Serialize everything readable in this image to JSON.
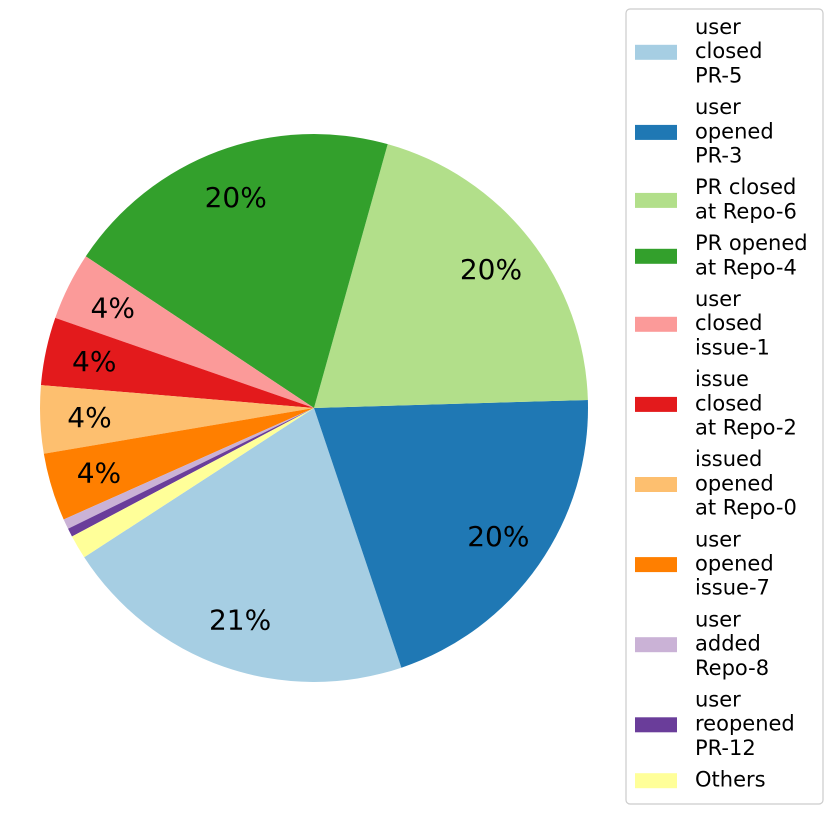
{
  "chart_data": {
    "type": "pie",
    "labels": [
      "user\nclosed\nPR-5",
      "user\nopened\nPR-3",
      "PR closed\nat Repo-6",
      "PR opened\nat Repo-4",
      "user\nclosed\nissue-1",
      "issue\nclosed\nat Repo-2",
      "issued\nopened\nat Repo-0",
      "user\nopened\nissue-7",
      "user\nadded\nRepo-8",
      "user\nreopened\nPR-12",
      "Others"
    ],
    "values": [
      21.0,
      20.3,
      20.2,
      20.0,
      4.0,
      4.0,
      4.0,
      4.0,
      0.6,
      0.5,
      1.4
    ],
    "value_labels": [
      "21%",
      "20%",
      "20%",
      "20%",
      "4%",
      "4%",
      "4%",
      "4%",
      "",
      "",
      ""
    ],
    "colors": [
      "#a6cee3",
      "#1f78b4",
      "#b2df8a",
      "#33a02c",
      "#fb9a99",
      "#e31a1c",
      "#fdbf6f",
      "#ff7f00",
      "#cab2d6",
      "#6a3d9a",
      "#ffff99"
    ],
    "start_angle_deg": 213,
    "direction": "counterclockwise",
    "legend_position": "right"
  }
}
